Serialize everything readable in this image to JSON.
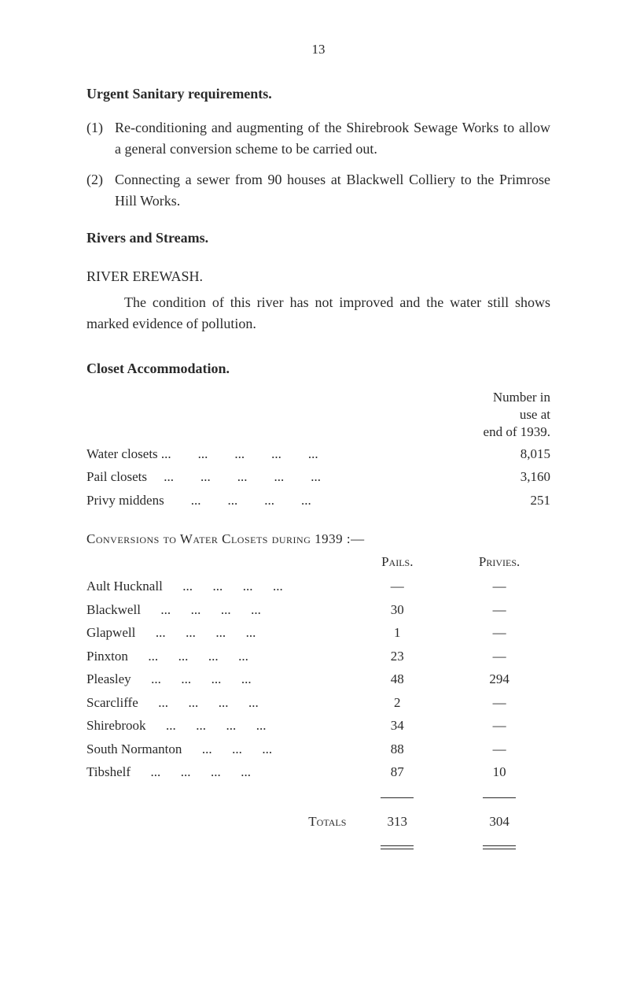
{
  "page_number": "13",
  "title1": "Urgent Sanitary requirements.",
  "item1_label": "(1)",
  "item1_text": "Re-conditioning and augmenting of the Shirebrook Sewage Works to allow a general conversion scheme to be carried out.",
  "item2_label": "(2)",
  "item2_text": "Connecting a sewer from 90 houses at Blackwell Colliery to the Primrose Hill Works.",
  "title2": "Rivers and Streams.",
  "title3": "RIVER EREWASH.",
  "river_para": "The condition of this river has not improved and the water still shows marked evidence of pollution.",
  "title4": "Closet Accommodation.",
  "note_line1": "Number in use at",
  "note_line2": "end of 1939.",
  "table1_rows": [
    {
      "label": "Water closets ...",
      "dots": "...        ...        ...        ...",
      "value": "8,015"
    },
    {
      "label": "Pail closets     ...",
      "dots": "...        ...        ...        ...",
      "value": "3,160"
    },
    {
      "label": "Privy middens",
      "dots": "...        ...        ...        ...",
      "value": "251"
    }
  ],
  "table2_title": "Conversions to Water Closets during 1939 :—",
  "table2_col1": "Pails.",
  "table2_col2": "Privies.",
  "table2_rows": [
    {
      "loc": "Ault Hucknall",
      "pails": "—",
      "priv": "—"
    },
    {
      "loc": "Blackwell",
      "pails": "30",
      "priv": "—"
    },
    {
      "loc": "Glapwell",
      "pails": "1",
      "priv": "—"
    },
    {
      "loc": "Pinxton",
      "pails": "23",
      "priv": "—"
    },
    {
      "loc": "Pleasley",
      "pails": "48",
      "priv": "294"
    },
    {
      "loc": "Scarcliffe",
      "pails": "2",
      "priv": "—"
    },
    {
      "loc": "Shirebrook",
      "pails": "34",
      "priv": "—"
    },
    {
      "loc": "South Normanton",
      "pails": "88",
      "priv": "—"
    },
    {
      "loc": "Tibshelf",
      "pails": "87",
      "priv": "10"
    }
  ],
  "totals_label": "Totals",
  "totals_pails": "313",
  "totals_priv": "304",
  "colors": {
    "text": "#2a2a2a",
    "bg": "#ffffff"
  }
}
